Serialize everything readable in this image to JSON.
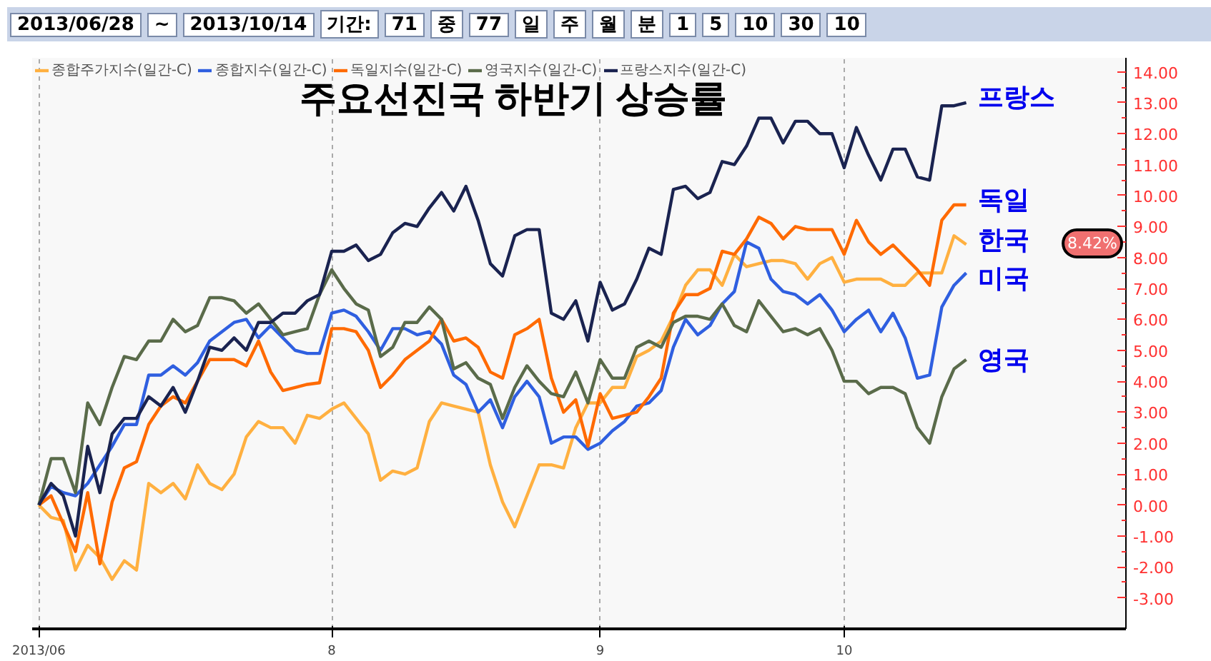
{
  "chart_data": [
    {
      "type": "other",
      "annotations": [
        "2013/06/28",
        "~",
        "2013/10/14",
        "기간:",
        "71",
        "중",
        "77",
        "일",
        "주",
        "월",
        "분",
        "1",
        "5",
        "10",
        "30",
        "10"
      ]
    },
    {
      "type": "line",
      "title": "주요선진국 하반기 상승률",
      "categories": [
        "2013/06",
        null,
        null,
        null,
        null,
        null,
        null,
        null,
        null,
        null,
        null,
        null,
        null,
        null,
        null,
        null,
        null,
        null,
        null,
        null,
        null,
        null,
        null,
        null,
        "8",
        null,
        null,
        null,
        null,
        null,
        null,
        null,
        null,
        null,
        null,
        null,
        null,
        null,
        null,
        null,
        null,
        null,
        null,
        null,
        null,
        null,
        "9",
        null,
        null,
        null,
        null,
        null,
        null,
        null,
        null,
        null,
        null,
        null,
        null,
        null,
        null,
        null,
        null,
        null,
        null,
        null,
        "10",
        null,
        null,
        null,
        null,
        null,
        null,
        null,
        null,
        null,
        null
      ],
      "ylim": [
        -4.0,
        14.45
      ],
      "yticks": [
        {
          "value": -3,
          "label": "-3.00"
        },
        {
          "value": -2,
          "label": "-2.00"
        },
        {
          "value": -1,
          "label": "-1.00"
        },
        {
          "value": 0,
          "label": "0.00"
        },
        {
          "value": 1,
          "label": "1.00"
        },
        {
          "value": 2,
          "label": "2.00"
        },
        {
          "value": 3,
          "label": "3.00"
        },
        {
          "value": 4,
          "label": "4.00"
        },
        {
          "value": 5,
          "label": "5.00"
        },
        {
          "value": 6,
          "label": "6.00"
        },
        {
          "value": 7,
          "label": "7.00"
        },
        {
          "value": 8,
          "label": "8.00"
        },
        {
          "value": 9,
          "label": "9.00"
        },
        {
          "value": 10,
          "label": "10.00"
        },
        {
          "value": 11,
          "label": "11.00"
        },
        {
          "value": 12,
          "label": "12.00"
        },
        {
          "value": 13,
          "label": "13.00"
        },
        {
          "value": 14,
          "label": "14.00"
        }
      ],
      "grid": "x",
      "legend": "top left",
      "series": [
        {
          "name": "종합주가지수(일간-C)",
          "color": "#ffb040",
          "values": [
            0,
            -0.4,
            -0.5,
            -2.1,
            -1.3,
            -1.7,
            -2.4,
            -1.8,
            -2.1,
            0.7,
            0.4,
            0.7,
            0.2,
            1.3,
            0.7,
            0.5,
            1.0,
            2.2,
            2.7,
            2.5,
            2.5,
            2.0,
            2.9,
            2.8,
            3.1,
            3.3,
            2.8,
            2.3,
            0.8,
            1.1,
            1.0,
            1.2,
            2.7,
            3.3,
            3.2,
            3.1,
            3.0,
            1.3,
            0.1,
            -0.7,
            0.3,
            1.3,
            1.3,
            1.2,
            2.5,
            3.3,
            3.3,
            3.8,
            3.8,
            4.8,
            5.0,
            5.3,
            6.1,
            7.1,
            7.6,
            7.6,
            7.1,
            8.1,
            7.7,
            7.8,
            7.9,
            7.9,
            7.8,
            7.3,
            7.8,
            8.0,
            7.2,
            7.3,
            7.3,
            7.3,
            7.1,
            7.1,
            7.5,
            7.5,
            7.5,
            8.7,
            8.42
          ]
        },
        {
          "name": "종합지수(일간-C)",
          "color": "#2f5fe0",
          "values": [
            0,
            0.6,
            0.4,
            0.3,
            0.7,
            1.3,
            1.9,
            2.6,
            2.6,
            4.2,
            4.2,
            4.5,
            4.2,
            4.6,
            5.3,
            5.6,
            5.9,
            6.0,
            5.4,
            5.8,
            5.4,
            5.0,
            4.9,
            4.9,
            6.2,
            6.3,
            6.1,
            5.6,
            5.0,
            5.7,
            5.7,
            5.5,
            5.6,
            5.2,
            4.2,
            3.9,
            3.0,
            3.4,
            2.5,
            3.5,
            4.0,
            3.5,
            2.0,
            2.2,
            2.2,
            1.8,
            2.0,
            2.4,
            2.7,
            3.2,
            3.3,
            3.7,
            5.1,
            6.0,
            5.5,
            5.8,
            6.5,
            6.9,
            8.5,
            8.3,
            7.3,
            6.9,
            6.8,
            6.5,
            6.8,
            6.3,
            5.6,
            6.0,
            6.3,
            5.6,
            6.2,
            5.4,
            4.1,
            4.2,
            6.4,
            7.1,
            7.5
          ]
        },
        {
          "name": "독일지수(일간-C)",
          "color": "#ff6a00",
          "values": [
            0,
            0.3,
            -0.6,
            -1.5,
            0.4,
            -1.9,
            0.1,
            1.2,
            1.4,
            2.6,
            3.2,
            3.5,
            3.3,
            4.0,
            4.7,
            4.7,
            4.7,
            4.5,
            5.3,
            4.3,
            3.7,
            3.8,
            3.9,
            3.95,
            5.7,
            5.7,
            5.6,
            5.0,
            3.8,
            4.2,
            4.7,
            5.0,
            5.3,
            6.0,
            5.3,
            5.4,
            5.1,
            4.3,
            4.1,
            5.5,
            5.7,
            6.0,
            4.1,
            3.0,
            3.4,
            1.9,
            3.6,
            2.8,
            2.9,
            3.0,
            3.5,
            4.1,
            6.2,
            6.8,
            6.8,
            7.0,
            8.2,
            8.1,
            8.6,
            9.3,
            9.1,
            8.6,
            9.0,
            8.9,
            8.9,
            8.9,
            8.1,
            9.2,
            8.5,
            8.1,
            8.4,
            8.0,
            7.6,
            7.1,
            9.2,
            9.7,
            9.7
          ]
        },
        {
          "name": "영국지수(일간-C)",
          "color": "#5a6b4a",
          "values": [
            0,
            1.5,
            1.5,
            0.4,
            3.3,
            2.6,
            3.8,
            4.8,
            4.7,
            5.3,
            5.3,
            6.0,
            5.6,
            5.8,
            6.7,
            6.7,
            6.6,
            6.2,
            6.5,
            6.0,
            5.5,
            5.6,
            5.7,
            6.8,
            7.6,
            7.0,
            6.5,
            6.3,
            4.8,
            5.1,
            5.9,
            5.9,
            6.4,
            6.0,
            4.4,
            4.6,
            4.1,
            3.9,
            2.8,
            3.8,
            4.5,
            4.0,
            3.6,
            3.5,
            4.3,
            3.3,
            4.7,
            4.1,
            4.1,
            5.1,
            5.3,
            5.1,
            5.9,
            6.1,
            6.1,
            6.0,
            6.5,
            5.8,
            5.6,
            6.6,
            6.1,
            5.6,
            5.7,
            5.5,
            5.7,
            5.0,
            4.0,
            4.0,
            3.6,
            3.8,
            3.8,
            3.6,
            2.5,
            2.0,
            3.5,
            4.4,
            4.7
          ]
        },
        {
          "name": "프랑스지수(일간-C)",
          "color": "#1a2350",
          "values": [
            0,
            0.7,
            0.3,
            -1.0,
            1.9,
            0.4,
            2.3,
            2.8,
            2.8,
            3.5,
            3.2,
            3.8,
            3.0,
            4.0,
            5.1,
            5.0,
            5.4,
            5.0,
            5.9,
            5.9,
            6.2,
            6.2,
            6.6,
            6.8,
            8.2,
            8.2,
            8.4,
            7.9,
            8.1,
            8.8,
            9.1,
            9.0,
            9.6,
            10.1,
            9.5,
            10.3,
            9.2,
            7.8,
            7.4,
            8.7,
            8.9,
            8.9,
            6.2,
            6.0,
            6.6,
            5.3,
            7.2,
            6.3,
            6.5,
            7.3,
            8.3,
            8.1,
            10.2,
            10.3,
            9.9,
            10.1,
            11.1,
            11.0,
            11.6,
            12.5,
            12.5,
            11.7,
            12.4,
            12.4,
            12.0,
            12.0,
            10.9,
            12.2,
            11.3,
            10.5,
            11.5,
            11.5,
            10.6,
            10.5,
            12.9,
            12.9,
            13.0
          ]
        }
      ],
      "annotations": [
        "프랑스",
        "독일",
        "한국",
        "미국",
        "영국",
        "8.42%"
      ]
    }
  ]
}
